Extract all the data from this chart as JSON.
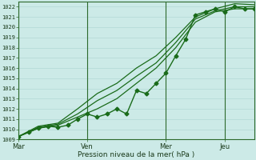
{
  "xlabel": "Pression niveau de la mer( hPa )",
  "bg_color": "#cceae7",
  "grid_color": "#aad4d0",
  "line_color": "#1a6b1a",
  "vline_color": "#2d6a2d",
  "ylim": [
    1009,
    1022.5
  ],
  "yticks": [
    1009,
    1010,
    1011,
    1012,
    1013,
    1014,
    1015,
    1016,
    1017,
    1018,
    1019,
    1020,
    1021,
    1022
  ],
  "xlim": [
    0,
    12
  ],
  "day_labels": [
    "Mar",
    "Ven",
    "Mer",
    "Jeu"
  ],
  "day_positions": [
    0,
    3.5,
    7.5,
    10.5
  ],
  "vline_positions": [
    0,
    3.5,
    7.5,
    10.5
  ],
  "series": [
    {
      "x": [
        0,
        0.5,
        1.0,
        1.5,
        2.0,
        2.5,
        3.0,
        3.5,
        4.0,
        4.5,
        5.0,
        5.5,
        6.0,
        6.5,
        7.0,
        7.5,
        8.0,
        8.5,
        9.0,
        9.5,
        10.0,
        10.5,
        11.0,
        11.5,
        12.0
      ],
      "y": [
        1009.3,
        1009.7,
        1010.1,
        1010.3,
        1010.2,
        1010.4,
        1011.0,
        1011.5,
        1011.2,
        1011.5,
        1012.0,
        1011.5,
        1013.8,
        1013.5,
        1014.5,
        1015.5,
        1017.2,
        1018.8,
        1021.2,
        1021.5,
        1021.8,
        1021.5,
        1022.0,
        1021.8,
        1021.8
      ],
      "marker": "D",
      "markersize": 2.5,
      "linewidth": 1.0
    },
    {
      "x": [
        0,
        1.0,
        2.0,
        3.0,
        4.0,
        5.0,
        6.0,
        7.0,
        8.0,
        9.0,
        10.0,
        11.0,
        12.0
      ],
      "y": [
        1009.3,
        1010.1,
        1010.4,
        1011.2,
        1012.0,
        1013.0,
        1014.5,
        1016.0,
        1018.0,
        1020.5,
        1021.5,
        1021.8,
        1021.8
      ],
      "marker": null,
      "markersize": 0,
      "linewidth": 0.9
    },
    {
      "x": [
        0,
        1.0,
        2.0,
        3.0,
        4.0,
        5.0,
        6.0,
        7.0,
        8.0,
        9.0,
        10.0,
        11.0,
        12.0
      ],
      "y": [
        1009.3,
        1010.3,
        1010.6,
        1012.0,
        1013.5,
        1014.5,
        1016.0,
        1017.2,
        1019.0,
        1021.0,
        1021.8,
        1022.3,
        1022.2
      ],
      "marker": null,
      "markersize": 0,
      "linewidth": 0.9
    },
    {
      "x": [
        0,
        1.0,
        2.0,
        3.0,
        4.0,
        5.0,
        6.0,
        7.0,
        8.0,
        9.0,
        10.0,
        11.0,
        12.0
      ],
      "y": [
        1009.3,
        1010.2,
        1010.5,
        1011.5,
        1012.8,
        1013.8,
        1015.2,
        1016.5,
        1018.5,
        1020.8,
        1021.6,
        1022.0,
        1022.0
      ],
      "marker": null,
      "markersize": 0,
      "linewidth": 0.9
    }
  ]
}
